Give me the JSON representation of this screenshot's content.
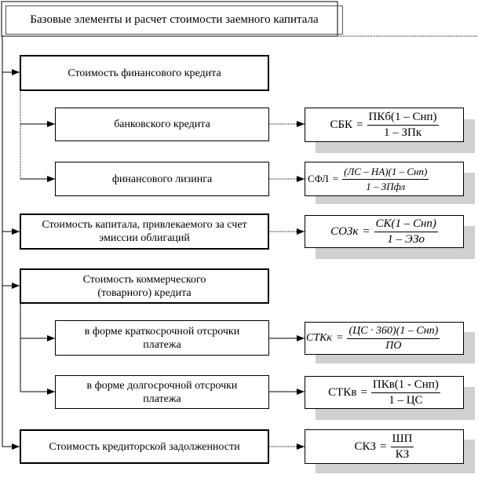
{
  "title": "Базовые элементы и расчет стоимости заемного капитала",
  "sections": [
    {
      "label": "Стоимость  финансового  кредита"
    },
    {
      "label": "Стоимость капитала, привлекаемого за счет эмиссии облигаций"
    },
    {
      "label": "Стоимость коммерческого (товарного) кредита"
    },
    {
      "label": "Стоимость кредиторской задолженности"
    }
  ],
  "subsections": [
    {
      "label": "банковского кредита"
    },
    {
      "label": "финансового лизинга"
    },
    {
      "label": "в форме краткосрочной отсрочки платежа"
    },
    {
      "label": "в форме долгосрочной отсрочки платежа"
    }
  ],
  "formulas": [
    {
      "lhs": "СБК",
      "eq": "=",
      "num": "ПКб(1 – Снп)",
      "den": "1 – ЗПк"
    },
    {
      "lhs": "СФЛ",
      "eq": "=",
      "num": "(ЛС – НА)(1 – Снп)",
      "den": "1 – ЗПфл"
    },
    {
      "lhs": "СОЗк",
      "eq": "=",
      "num": "СК(1 – Снп)",
      "den": "1 – ЭЗо"
    },
    {
      "lhs": "СТКк",
      "eq": "=",
      "num": "(ЦС · 360)(1 – Снп)",
      "den": "ПО"
    },
    {
      "lhs": "СТКв",
      "eq": "=",
      "num": "ПКв(1 - Снп)",
      "den": "1 – ЦС"
    },
    {
      "lhs": "СКЗ",
      "eq": "=",
      "num": "ШП",
      "den": "КЗ"
    }
  ]
}
